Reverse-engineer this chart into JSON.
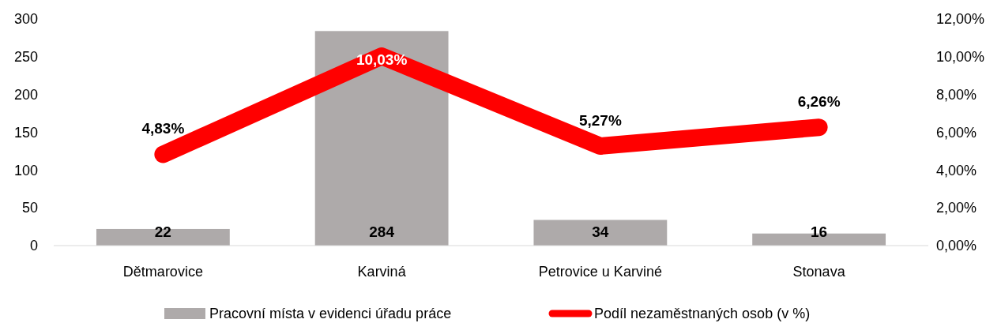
{
  "chart_data": {
    "type": "bar",
    "categories": [
      "Dětmarovice",
      "Karviná",
      "Petrovice u Karviné",
      "Stonava"
    ],
    "series": [
      {
        "name": "Pracovní místa v evidenci úřadu práce",
        "color": "#aeaaaa",
        "values": [
          22,
          284,
          34,
          16
        ],
        "value_labels": [
          "22",
          "284",
          "34",
          "16"
        ]
      },
      {
        "name": "Podíl nezaměstnaných osob (v %)",
        "type": "line",
        "axis": "y2",
        "color": "#ff0000",
        "values": [
          4.83,
          10.03,
          5.27,
          6.26
        ],
        "value_labels": [
          "4,83%",
          "10,03%",
          "5,27%",
          "6,26%"
        ]
      }
    ],
    "ylim": [
      0,
      300
    ],
    "yticks": [
      0,
      50,
      100,
      150,
      200,
      250,
      300
    ],
    "y2lim": [
      0,
      12
    ],
    "y2ticks": [
      {
        "value": 0,
        "label": "0,00%"
      },
      {
        "value": 2,
        "label": "2,00%"
      },
      {
        "value": 4,
        "label": "4,00%"
      },
      {
        "value": 6,
        "label": "6,00%"
      },
      {
        "value": 8,
        "label": "8,00%"
      },
      {
        "value": 10,
        "label": "10,00%"
      },
      {
        "value": 12,
        "label": "12,00%"
      }
    ],
    "legend": "bottom"
  }
}
